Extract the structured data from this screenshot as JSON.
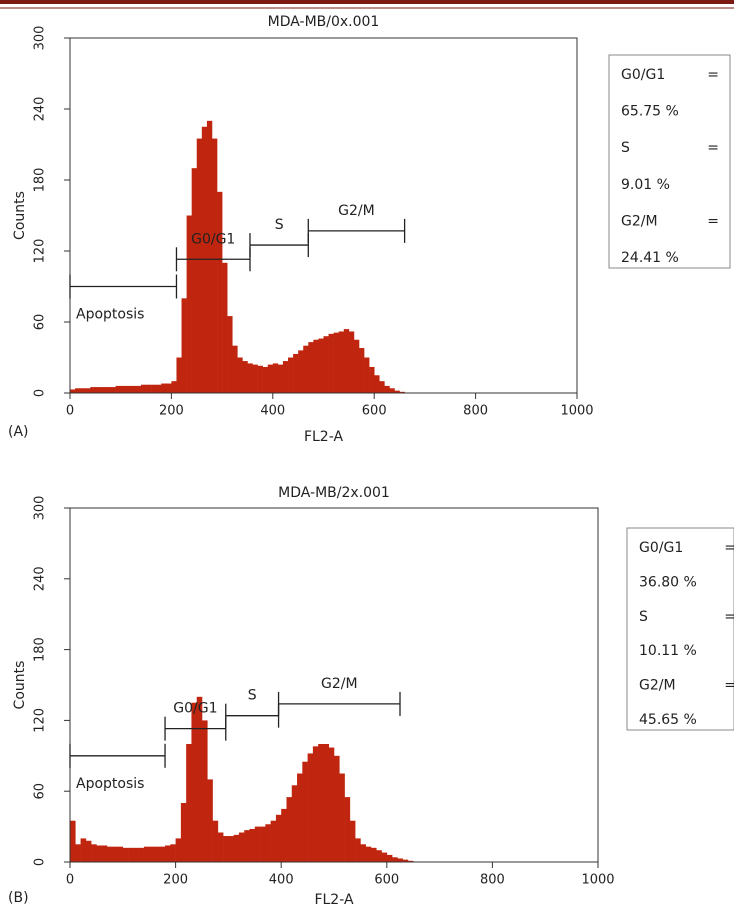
{
  "chart_data": [
    {
      "type": "histogram",
      "title": "MDA-MB/0x.001",
      "xlabel": "FL2-A",
      "ylabel": "Counts",
      "panel": "(A)",
      "color": "#c0260f",
      "xlim": [
        0,
        1000
      ],
      "ylim": [
        0,
        300
      ],
      "xticks": [
        0,
        200,
        400,
        600,
        800,
        1000
      ],
      "yticks": [
        0,
        60,
        120,
        180,
        240,
        300
      ],
      "bins": [
        0,
        10,
        20,
        30,
        40,
        50,
        60,
        70,
        80,
        90,
        100,
        110,
        120,
        130,
        140,
        150,
        160,
        170,
        180,
        190,
        200,
        210,
        220,
        230,
        240,
        250,
        260,
        270,
        280,
        290,
        300,
        310,
        320,
        330,
        340,
        350,
        360,
        370,
        380,
        390,
        400,
        410,
        420,
        430,
        440,
        450,
        460,
        470,
        480,
        490,
        500,
        510,
        520,
        530,
        540,
        550,
        560,
        570,
        580,
        590,
        600,
        610,
        620,
        630,
        640,
        650,
        660
      ],
      "counts": [
        3,
        4,
        4,
        4,
        5,
        5,
        5,
        5,
        5,
        6,
        6,
        6,
        6,
        6,
        7,
        7,
        7,
        7,
        8,
        8,
        10,
        30,
        80,
        150,
        190,
        215,
        225,
        230,
        215,
        170,
        110,
        65,
        40,
        30,
        27,
        25,
        24,
        23,
        22,
        24,
        25,
        24,
        27,
        30,
        33,
        36,
        40,
        43,
        45,
        46,
        48,
        50,
        51,
        52,
        54,
        52,
        45,
        38,
        30,
        22,
        15,
        10,
        6,
        4,
        2,
        1
      ],
      "gates": [
        {
          "label": "Apoptosis",
          "range": [
            0,
            210
          ],
          "y": 90
        },
        {
          "label": "G0/G1",
          "range": [
            210,
            355
          ],
          "y": 113
        },
        {
          "label": "S",
          "range": [
            355,
            470
          ],
          "y": 125
        },
        {
          "label": "G2/M",
          "range": [
            470,
            660
          ],
          "y": 137
        }
      ],
      "stats": [
        {
          "name": "G0/G1",
          "eq": "=",
          "value": "65.75 %"
        },
        {
          "name": "S",
          "eq": "=",
          "value": "9.01 %"
        },
        {
          "name": "G2/M",
          "eq": "=",
          "value": "24.41 %"
        }
      ]
    },
    {
      "type": "histogram",
      "title": "MDA-MB/2x.001",
      "xlabel": "FL2-A",
      "ylabel": "Counts",
      "panel": "(B)",
      "color": "#c0260f",
      "xlim": [
        0,
        1000
      ],
      "ylim": [
        0,
        300
      ],
      "xticks": [
        0,
        200,
        400,
        600,
        800,
        1000
      ],
      "yticks": [
        0,
        60,
        120,
        180,
        240,
        300
      ],
      "bins": [
        0,
        10,
        20,
        30,
        40,
        50,
        60,
        70,
        80,
        90,
        100,
        110,
        120,
        130,
        140,
        150,
        160,
        170,
        180,
        190,
        200,
        210,
        220,
        230,
        240,
        250,
        260,
        270,
        280,
        290,
        300,
        310,
        320,
        330,
        340,
        350,
        360,
        370,
        380,
        390,
        400,
        410,
        420,
        430,
        440,
        450,
        460,
        470,
        480,
        490,
        500,
        510,
        520,
        530,
        540,
        550,
        560,
        570,
        580,
        590,
        600,
        610,
        620,
        630,
        640,
        650
      ],
      "counts": [
        35,
        15,
        20,
        18,
        15,
        14,
        14,
        13,
        13,
        13,
        12,
        12,
        12,
        12,
        13,
        13,
        13,
        13,
        14,
        15,
        20,
        50,
        100,
        135,
        140,
        120,
        70,
        35,
        25,
        22,
        22,
        23,
        25,
        27,
        28,
        30,
        30,
        32,
        35,
        40,
        45,
        55,
        65,
        75,
        85,
        92,
        98,
        100,
        100,
        97,
        90,
        75,
        55,
        35,
        20,
        15,
        13,
        12,
        10,
        8,
        6,
        4,
        3,
        2,
        1
      ],
      "gates": [
        {
          "label": "Apoptosis",
          "range": [
            0,
            180
          ],
          "y": 90
        },
        {
          "label": "G0/G1",
          "range": [
            180,
            295
          ],
          "y": 113
        },
        {
          "label": "S",
          "range": [
            295,
            395
          ],
          "y": 124
        },
        {
          "label": "G2/M",
          "range": [
            395,
            625
          ],
          "y": 134
        }
      ],
      "stats": [
        {
          "name": "G0/G1",
          "eq": "=",
          "value": "36.80 %"
        },
        {
          "name": "S",
          "eq": "=",
          "value": "10.11 %"
        },
        {
          "name": "G2/M",
          "eq": "=",
          "value": "45.65 %"
        }
      ]
    }
  ]
}
